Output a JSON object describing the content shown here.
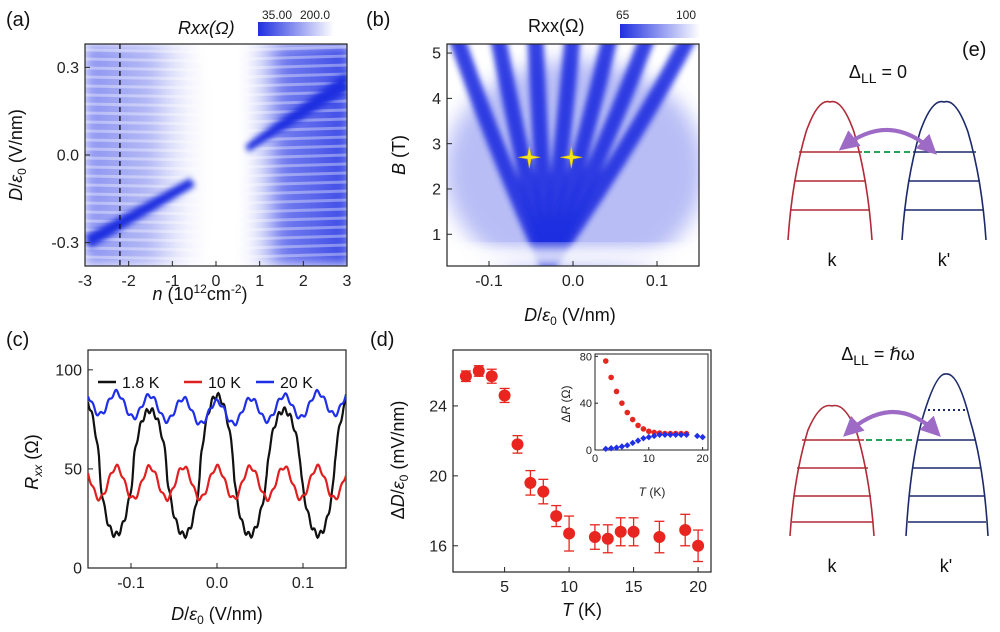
{
  "panels": {
    "a": "(a)",
    "b": "(b)",
    "c": "(c)",
    "d": "(d)",
    "e": "(e)"
  },
  "colors": {
    "blue": "#1f2fe0",
    "red": "#e02020",
    "black": "#111111",
    "series_blue": "#1f2fe8",
    "dot_red": "#e8251f",
    "diamond_blue": "#2030e8",
    "valley_red": "#b02a37",
    "valley_navy": "#1c2a6b",
    "arrow_purple": "#9d6bc6",
    "dash_green": "#25a35a",
    "star_yellow": "#f5e31f"
  },
  "chart_data": [
    {
      "id": "a",
      "type": "heatmap",
      "title": "",
      "colorbar": {
        "label": "Rxx(Ω)",
        "min_label": "35.00",
        "max_label": "200.0",
        "min": 35,
        "max": 200
      },
      "xlabel": "n (10^12 cm^-2)",
      "ylabel": "D/ε0 (V/nm)",
      "xlim": [
        -3,
        3
      ],
      "ylim": [
        -0.38,
        0.38
      ],
      "xticks": [
        "-3",
        "-2",
        "-1",
        "0",
        "1",
        "2",
        "3"
      ],
      "xtick_values": [
        -3,
        -2,
        -1,
        0,
        1,
        2,
        3
      ],
      "yticks": [
        "0.3",
        "0.0",
        "-0.3"
      ],
      "ytick_values": [
        0.3,
        0.0,
        -0.3
      ],
      "dashed_line_x": -2.2,
      "features": [
        {
          "kind": "streak",
          "from": [
            -3.0,
            -0.27
          ],
          "to": [
            -0.7,
            -0.1
          ]
        },
        {
          "kind": "streak",
          "from": [
            0.7,
            0.05
          ],
          "to": [
            3.0,
            0.3
          ]
        }
      ]
    },
    {
      "id": "b",
      "type": "heatmap",
      "title": "",
      "colorbar": {
        "label": "Rxx(Ω)",
        "min_label": "65",
        "max_label": "100",
        "min": 65,
        "max": 100
      },
      "xlabel": "D/ε0 (V/nm)",
      "ylabel": "B (T)",
      "xlim": [
        -0.15,
        0.15
      ],
      "ylim": [
        0.3,
        5.2
      ],
      "xticks": [
        "-0.1",
        "0.0",
        "0.1"
      ],
      "xtick_values": [
        -0.1,
        0.0,
        0.1
      ],
      "yticks": [
        "1",
        "2",
        "3",
        "4",
        "5"
      ],
      "ytick_values": [
        1,
        2,
        3,
        4,
        5
      ],
      "fan_lines_D_at_top": [
        -0.14,
        -0.09,
        -0.045,
        0.0,
        0.045,
        0.09,
        0.14
      ],
      "fan_origin": [
        -0.03,
        0.3
      ],
      "markers": [
        {
          "D": -0.052,
          "B": 2.7,
          "symbol": "star"
        },
        {
          "D": -0.002,
          "B": 2.7,
          "symbol": "star"
        }
      ]
    },
    {
      "id": "c",
      "type": "line",
      "title": "",
      "xlabel": "D/ε0 (V/nm)",
      "ylabel": "Rxx (Ω)",
      "xlim": [
        -0.15,
        0.15
      ],
      "ylim": [
        0,
        110
      ],
      "xticks": [
        "-0.1",
        "0.0",
        "0.1"
      ],
      "xtick_values": [
        -0.1,
        0.0,
        0.1
      ],
      "yticks": [
        "0",
        "50",
        "100"
      ],
      "ytick_values": [
        0,
        50,
        100
      ],
      "legend": "top",
      "series": [
        {
          "name": "1.8 K",
          "color": "#111111",
          "base": 50,
          "amp": 37,
          "period": 0.078,
          "phase": 0.0
        },
        {
          "name": "10 K",
          "color": "#e02020",
          "base": 43,
          "amp": 8,
          "period": 0.039,
          "phase": 0.0
        },
        {
          "name": "20 K",
          "color": "#1f2fe8",
          "base": 78,
          "amp": 6,
          "period": 0.039,
          "phase": 0.0
        }
      ]
    },
    {
      "id": "d",
      "type": "scatter",
      "title": "",
      "xlabel": "T (K)",
      "ylabel": "ΔD/ε0 (mV/nm)",
      "xlim": [
        1,
        21
      ],
      "ylim": [
        14.5,
        27.2
      ],
      "xticks": [
        "5",
        "10",
        "15",
        "20"
      ],
      "xtick_values": [
        5,
        10,
        15,
        20
      ],
      "yticks": [
        "16",
        "20",
        "24"
      ],
      "ytick_values": [
        16,
        20,
        24
      ],
      "points": [
        {
          "x": 2,
          "y": 25.7,
          "err": 0.3
        },
        {
          "x": 3,
          "y": 26.0,
          "err": 0.3
        },
        {
          "x": 4,
          "y": 25.7,
          "err": 0.4
        },
        {
          "x": 5,
          "y": 24.6,
          "err": 0.4
        },
        {
          "x": 6,
          "y": 21.8,
          "err": 0.5
        },
        {
          "x": 7,
          "y": 19.6,
          "err": 0.7
        },
        {
          "x": 8,
          "y": 19.1,
          "err": 0.7
        },
        {
          "x": 9,
          "y": 17.7,
          "err": 0.6
        },
        {
          "x": 10,
          "y": 16.7,
          "err": 1.0
        },
        {
          "x": 12,
          "y": 16.5,
          "err": 0.7
        },
        {
          "x": 13,
          "y": 16.4,
          "err": 0.8
        },
        {
          "x": 14,
          "y": 16.8,
          "err": 0.8
        },
        {
          "x": 15,
          "y": 16.8,
          "err": 0.8
        },
        {
          "x": 17,
          "y": 16.5,
          "err": 0.9
        },
        {
          "x": 19,
          "y": 16.9,
          "err": 0.9
        },
        {
          "x": 20,
          "y": 16.0,
          "err": 0.9
        }
      ],
      "inset": {
        "xlabel": "T (K)",
        "ylabel": "ΔR (Ω)",
        "xlim": [
          0,
          21
        ],
        "ylim": [
          0,
          82
        ],
        "xticks": [
          "0",
          "10",
          "20"
        ],
        "xtick_values": [
          0,
          10,
          20
        ],
        "yticks": [
          "0",
          "40",
          "80"
        ],
        "ytick_values": [
          0,
          40,
          80
        ],
        "series": [
          {
            "name": "red",
            "marker": "circle",
            "color": "#e8251f",
            "x": [
              2,
              3,
              4,
              5,
              6,
              7,
              8,
              9,
              10,
              11,
              12,
              13,
              14,
              15,
              16,
              17
            ],
            "y": [
              76,
              62,
              50,
              40,
              32,
              26,
              21,
              18,
              16,
              15,
              14.5,
              14,
              14,
              14,
              14,
              14
            ]
          },
          {
            "name": "blue",
            "marker": "diamond",
            "color": "#2030e8",
            "x": [
              2,
              3,
              4,
              5,
              6,
              7,
              8,
              9,
              10,
              11,
              12,
              13,
              14,
              15,
              16,
              17,
              19,
              20
            ],
            "y": [
              1,
              1.5,
              2,
              3,
              4,
              6,
              8,
              10,
              11,
              12,
              13,
              13,
              13,
              13,
              13,
              13,
              12,
              11
            ]
          }
        ]
      }
    }
  ],
  "diagram": {
    "top": {
      "title": "ΔLL = 0",
      "left_label": "k",
      "right_label": "k'"
    },
    "bottom": {
      "title": "ΔLL = ℏω",
      "left_label": "k",
      "right_label": "k'"
    }
  }
}
